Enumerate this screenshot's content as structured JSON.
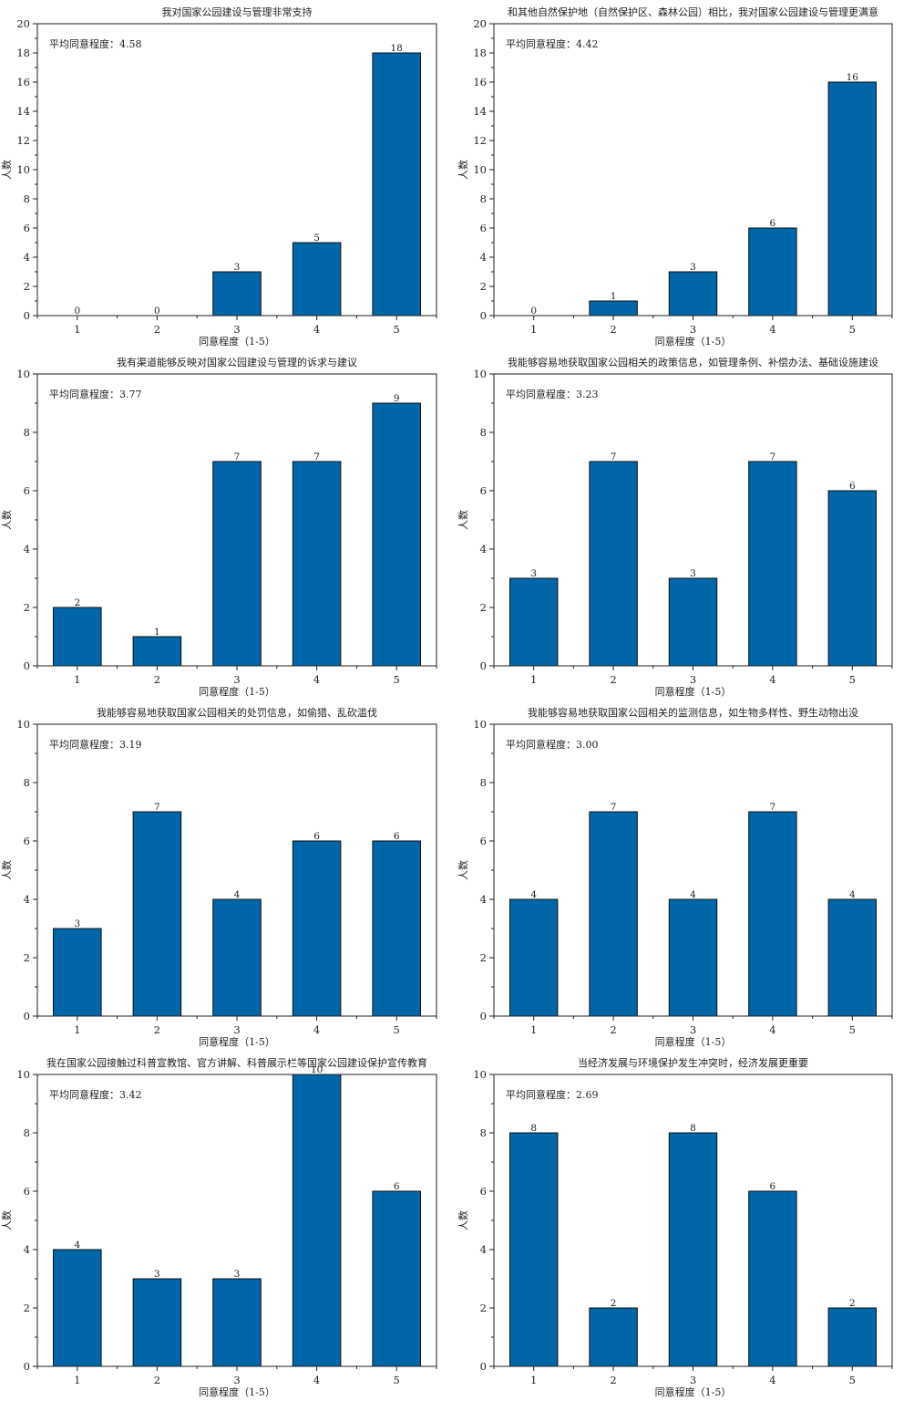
{
  "figure": {
    "bar_color": "#0066a8",
    "edge_color": "#111111"
  },
  "chart_data": [
    {
      "type": "bar",
      "title": "我对国家公园建设与管理非常支持",
      "annotation": "平均同意程度：4.58",
      "categories": [
        "1",
        "2",
        "3",
        "4",
        "5"
      ],
      "values": [
        0,
        0,
        3,
        5,
        18
      ],
      "xlabel": "同意程度（1-5）",
      "ylabel": "人数",
      "ylim": [
        0,
        20
      ],
      "yticks": [
        0,
        2,
        4,
        6,
        8,
        10,
        12,
        14,
        16,
        18,
        20
      ],
      "grid": false
    },
    {
      "type": "bar",
      "title": "和其他自然保护地（自然保护区、森林公园）相比，我对国家公园建设与管理更满意",
      "annotation": "平均同意程度：4.42",
      "categories": [
        "1",
        "2",
        "3",
        "4",
        "5"
      ],
      "values": [
        0,
        1,
        3,
        6,
        16
      ],
      "xlabel": "同意程度（1-5）",
      "ylabel": "人数",
      "ylim": [
        0,
        20
      ],
      "yticks": [
        0,
        2,
        4,
        6,
        8,
        10,
        12,
        14,
        16,
        18,
        20
      ],
      "grid": false
    },
    {
      "type": "bar",
      "title": "我有渠道能够反映对国家公园建设与管理的诉求与建议",
      "annotation": "平均同意程度：3.77",
      "categories": [
        "1",
        "2",
        "3",
        "4",
        "5"
      ],
      "values": [
        2,
        1,
        7,
        7,
        9
      ],
      "xlabel": "同意程度（1-5）",
      "ylabel": "人数",
      "ylim": [
        0,
        10
      ],
      "yticks": [
        0,
        2,
        4,
        6,
        8,
        10
      ],
      "grid": false
    },
    {
      "type": "bar",
      "title": "我能够容易地获取国家公园相关的政策信息，如管理条例、补偿办法、基础设施建设",
      "annotation": "平均同意程度：3.23",
      "categories": [
        "1",
        "2",
        "3",
        "4",
        "5"
      ],
      "values": [
        3,
        7,
        3,
        7,
        6
      ],
      "xlabel": "同意程度（1-5）",
      "ylabel": "人数",
      "ylim": [
        0,
        10
      ],
      "yticks": [
        0,
        2,
        4,
        6,
        8,
        10
      ],
      "grid": false
    },
    {
      "type": "bar",
      "title": "我能够容易地获取国家公园相关的处罚信息，如偷猎、乱砍滥伐",
      "annotation": "平均同意程度：3.19",
      "categories": [
        "1",
        "2",
        "3",
        "4",
        "5"
      ],
      "values": [
        3,
        7,
        4,
        6,
        6
      ],
      "xlabel": "同意程度（1-5）",
      "ylabel": "人数",
      "ylim": [
        0,
        10
      ],
      "yticks": [
        0,
        2,
        4,
        6,
        8,
        10
      ],
      "grid": false
    },
    {
      "type": "bar",
      "title": "我能够容易地获取国家公园相关的监测信息，如生物多样性、野生动物出没",
      "annotation": "平均同意程度：3.00",
      "categories": [
        "1",
        "2",
        "3",
        "4",
        "5"
      ],
      "values": [
        4,
        7,
        4,
        7,
        4
      ],
      "xlabel": "同意程度（1-5）",
      "ylabel": "人数",
      "ylim": [
        0,
        10
      ],
      "yticks": [
        0,
        2,
        4,
        6,
        8,
        10
      ],
      "grid": false
    },
    {
      "type": "bar",
      "title": "我在国家公园接触过科普宣教馆、官方讲解、科普展示栏等国家公园建设保护宣传教育",
      "annotation": "平均同意程度：3.42",
      "categories": [
        "1",
        "2",
        "3",
        "4",
        "5"
      ],
      "values": [
        4,
        3,
        3,
        10,
        6
      ],
      "xlabel": "同意程度（1-5）",
      "ylabel": "人数",
      "ylim": [
        0,
        10
      ],
      "yticks": [
        0,
        2,
        4,
        6,
        8,
        10
      ],
      "grid": false
    },
    {
      "type": "bar",
      "title": "当经济发展与环境保护发生冲突时，经济发展更重要",
      "annotation": "平均同意程度：2.69",
      "categories": [
        "1",
        "2",
        "3",
        "4",
        "5"
      ],
      "values": [
        8,
        2,
        8,
        6,
        2
      ],
      "xlabel": "同意程度（1-5）",
      "ylabel": "人数",
      "ylim": [
        0,
        10
      ],
      "yticks": [
        0,
        2,
        4,
        6,
        8,
        10
      ],
      "grid": false
    }
  ]
}
